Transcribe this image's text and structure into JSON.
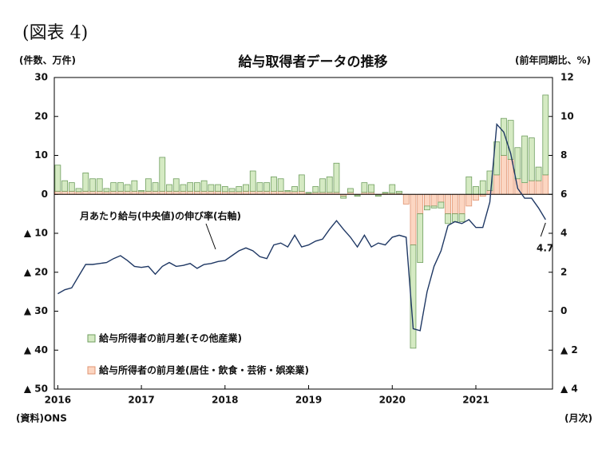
{
  "chart_data": {
    "type": "bar",
    "header": "(図表 4)",
    "title": "給与取得者データの推移",
    "y_label": "(件数、万件)",
    "y2_label": "(前年同期比、%)",
    "source": "(資料)ONS",
    "x_unit": "(月次)",
    "stacked": true,
    "legend": "lower left",
    "categories": [
      "2016",
      null,
      null,
      null,
      null,
      null,
      null,
      null,
      null,
      null,
      null,
      null,
      "2017",
      null,
      null,
      null,
      null,
      null,
      null,
      null,
      null,
      null,
      null,
      null,
      "2018",
      null,
      null,
      null,
      null,
      null,
      null,
      null,
      null,
      null,
      null,
      null,
      "2019",
      null,
      null,
      null,
      null,
      null,
      null,
      null,
      null,
      null,
      null,
      null,
      "2020",
      null,
      null,
      null,
      null,
      null,
      null,
      null,
      null,
      null,
      null,
      null,
      "2021",
      null,
      null,
      null,
      null,
      null,
      null,
      null,
      null,
      null,
      null
    ],
    "ylim": [
      -50,
      30
    ],
    "yticks": [
      30,
      20,
      10,
      0,
      {
        "value": -10,
        "label": "▲ 10"
      },
      {
        "value": -20,
        "label": "▲ 20"
      },
      {
        "value": -30,
        "label": "▲ 30"
      },
      {
        "value": -40,
        "label": "▲ 40"
      },
      {
        "value": -50,
        "label": "▲ 50"
      }
    ],
    "y2lim": [
      -4,
      12
    ],
    "y2ticks": [
      12,
      10,
      8,
      6,
      4,
      2,
      0,
      {
        "value": -2,
        "label": "▲ 2"
      },
      {
        "value": -4,
        "label": "▲ 4"
      }
    ],
    "series": [
      {
        "name": "給与所得者の前月差(その他産業)",
        "color": "#d5eac3",
        "stroke": "#6f9e5f",
        "values": [
          6.7,
          2.7,
          2.2,
          0.8,
          4.7,
          3.2,
          3.2,
          0.8,
          2.2,
          2.2,
          1.7,
          2.7,
          0.3,
          3.2,
          2.2,
          8.7,
          1.7,
          3.2,
          1.7,
          2.2,
          2.2,
          2.7,
          1.7,
          1.7,
          1.3,
          0.8,
          1.3,
          1.7,
          5.2,
          2.2,
          2.2,
          3.7,
          3.2,
          0.3,
          1.3,
          4.2,
          0.2,
          1.5,
          3.5,
          4.0,
          7.5,
          -0.5,
          1.0,
          -0.3,
          2.5,
          2.0,
          -0.3,
          0.2,
          2.2,
          0.5,
          0,
          -26.5,
          -12.5,
          -1,
          -0.5,
          -1.5,
          -2.5,
          -2,
          -2,
          4.5,
          2,
          3.5,
          5,
          8.5,
          9.5,
          10,
          8,
          12,
          11,
          3.5,
          20.5
        ]
      },
      {
        "name": "給与所得者の前月差(居住・飲食・芸術・娯楽業)",
        "color": "#fcd6c2",
        "stroke": "#e09472",
        "values": [
          0.8,
          0.8,
          0.8,
          0.7,
          0.8,
          0.8,
          0.8,
          0.7,
          0.8,
          0.8,
          0.8,
          0.8,
          0.7,
          0.8,
          0.8,
          0.8,
          0.8,
          0.8,
          0.8,
          0.8,
          0.8,
          0.8,
          0.8,
          0.8,
          0.7,
          0.7,
          0.7,
          0.8,
          0.8,
          0.8,
          0.8,
          0.8,
          0.8,
          0.7,
          0.7,
          0.8,
          0.3,
          0.5,
          0.5,
          0.5,
          0.5,
          -0.5,
          0.5,
          -0.2,
          0.5,
          0.5,
          -0.2,
          0.3,
          0.3,
          0.3,
          -2.5,
          -13,
          -5,
          -3,
          -3,
          -2,
          -5,
          -5,
          -5,
          -3,
          -1.5,
          -0.5,
          1,
          5,
          10,
          9,
          4,
          3,
          3.5,
          3.5,
          5
        ]
      },
      {
        "name": "月あたり給与(中央値)の伸び率(右軸)",
        "type": "line",
        "axis": "y2",
        "color": "#1f3864",
        "values": [
          0.9,
          1.1,
          1.2,
          1.8,
          2.4,
          2.4,
          2.45,
          2.5,
          2.7,
          2.85,
          2.6,
          2.3,
          2.25,
          2.3,
          1.9,
          2.3,
          2.5,
          2.3,
          2.35,
          2.45,
          2.2,
          2.4,
          2.45,
          2.55,
          2.6,
          2.85,
          3.1,
          3.25,
          3.1,
          2.8,
          2.7,
          3.4,
          3.5,
          3.3,
          3.9,
          3.3,
          3.4,
          3.6,
          3.7,
          4.2,
          4.65,
          4.2,
          3.8,
          3.3,
          3.9,
          3.3,
          3.5,
          3.4,
          3.8,
          3.9,
          3.8,
          -0.9,
          -1.0,
          1.0,
          2.3,
          3.1,
          4.4,
          4.6,
          4.5,
          4.7,
          4.3,
          4.3,
          5.6,
          9.6,
          9.2,
          8.1,
          6.3,
          5.8,
          5.8,
          5.3,
          4.7
        ]
      }
    ],
    "annotations": [
      "4.7"
    ]
  }
}
